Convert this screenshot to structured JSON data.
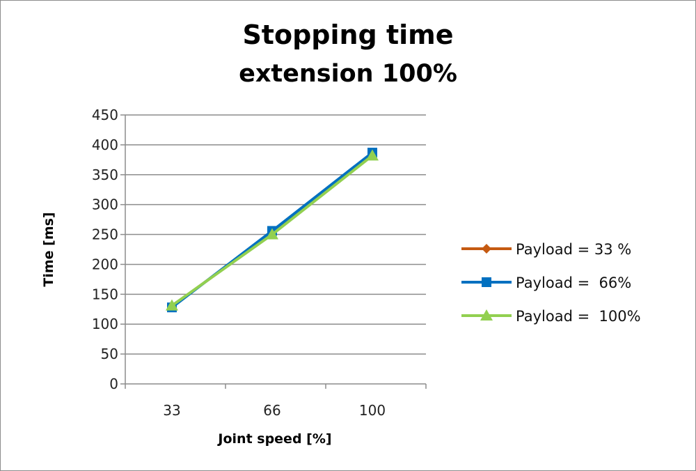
{
  "chart_data": {
    "type": "line",
    "title": "Stopping time",
    "subtitle": "extension 100%",
    "xlabel": "Joint speed [%]",
    "ylabel": "Time [ms]",
    "categories": [
      "33",
      "66",
      "100"
    ],
    "ylim": [
      0,
      450
    ],
    "yticks": [
      0,
      50,
      100,
      150,
      200,
      250,
      300,
      350,
      400,
      450
    ],
    "grid": true,
    "legend": "right",
    "series": [
      {
        "name": "Payload = 33 %",
        "values": [
          130,
          252,
          383
        ],
        "color": "#c55a11",
        "marker": "diamond"
      },
      {
        "name": "Payload =  66%",
        "values": [
          128,
          256,
          387
        ],
        "color": "#0070c0",
        "marker": "square"
      },
      {
        "name": "Payload =  100%",
        "values": [
          131,
          250,
          382
        ],
        "color": "#92d050",
        "marker": "triangle"
      }
    ]
  }
}
